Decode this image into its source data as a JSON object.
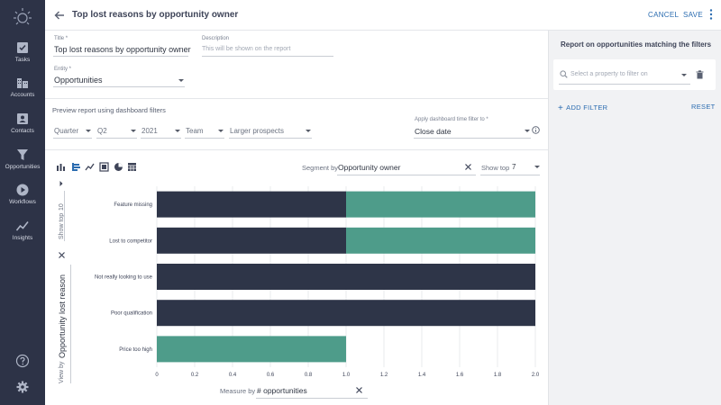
{
  "header": {
    "title": "Top lost reasons by opportunity owner",
    "cancel_label": "CANCEL",
    "save_label": "SAVE"
  },
  "sidebar": {
    "items": [
      {
        "label": "Tasks",
        "icon": "tasks-icon"
      },
      {
        "label": "Accounts",
        "icon": "accounts-icon"
      },
      {
        "label": "Contacts",
        "icon": "contacts-icon"
      },
      {
        "label": "Opportunities",
        "icon": "filter-funnel-icon"
      },
      {
        "label": "Workflows",
        "icon": "play-circle-icon"
      },
      {
        "label": "Insights",
        "icon": "trend-line-icon"
      }
    ],
    "bottom_icons": [
      "help-icon",
      "settings-gear-icon"
    ]
  },
  "form": {
    "title_label": "Title *",
    "title_value": "Top lost reasons by opportunity owner",
    "description_label": "Description",
    "description_placeholder": "This will be shown on the report",
    "entity_label": "Entity *",
    "entity_value": "Opportunities",
    "preview_label": "Preview report using dashboard filters",
    "filters": [
      "Quarter",
      "Q2",
      "2021",
      "Team",
      "Larger prospects"
    ],
    "time_filter_label": "Apply dashboard time filter to *",
    "time_filter_value": "Close date"
  },
  "toolbar": {
    "chart_types": [
      "bar-chart-icon",
      "horizontal-bar-icon",
      "line-chart-icon",
      "table-icon",
      "pie-chart-icon",
      "grid-icon"
    ],
    "segment_label": "Segment by",
    "segment_value": "Opportunity owner",
    "show_top_label": "Show top",
    "show_top_value": "7"
  },
  "view_by": {
    "label": "View by",
    "value": "Opportunity lost reason",
    "show_top_label": "Show top",
    "show_top_value": "10"
  },
  "measure_by": {
    "label": "Measure by",
    "value": "# opportunities"
  },
  "right_panel": {
    "title": "Report on opportunities matching the filters",
    "filter_placeholder": "Select a property to filter on",
    "add_filter_label": "ADD FILTER",
    "reset_label": "RESET"
  },
  "colors": {
    "sidebar_bg": "#2d3347",
    "series_dark": "#2e3548",
    "series_teal": "#4e9c8a",
    "accent": "#2b6cb0"
  },
  "chart_data": {
    "type": "bar",
    "orientation": "horizontal",
    "stacked": true,
    "categories": [
      "Feature missing",
      "Lost to competitor",
      "Not really looking to use",
      "Poor qualification",
      "Price too high"
    ],
    "series": [
      {
        "values": [
          1,
          1,
          2,
          2,
          0
        ],
        "color": "#2e3548"
      },
      {
        "values": [
          1,
          1,
          0,
          0,
          1
        ],
        "color": "#4e9c8a"
      }
    ],
    "xlim": [
      0,
      2.0
    ],
    "xticks": [
      "0",
      "0.2",
      "0.4",
      "0.6",
      "0.8",
      "1.0",
      "1.2",
      "1.4",
      "1.6",
      "1.8",
      "2.0"
    ],
    "grid": true,
    "xlabel": "",
    "ylabel": ""
  }
}
